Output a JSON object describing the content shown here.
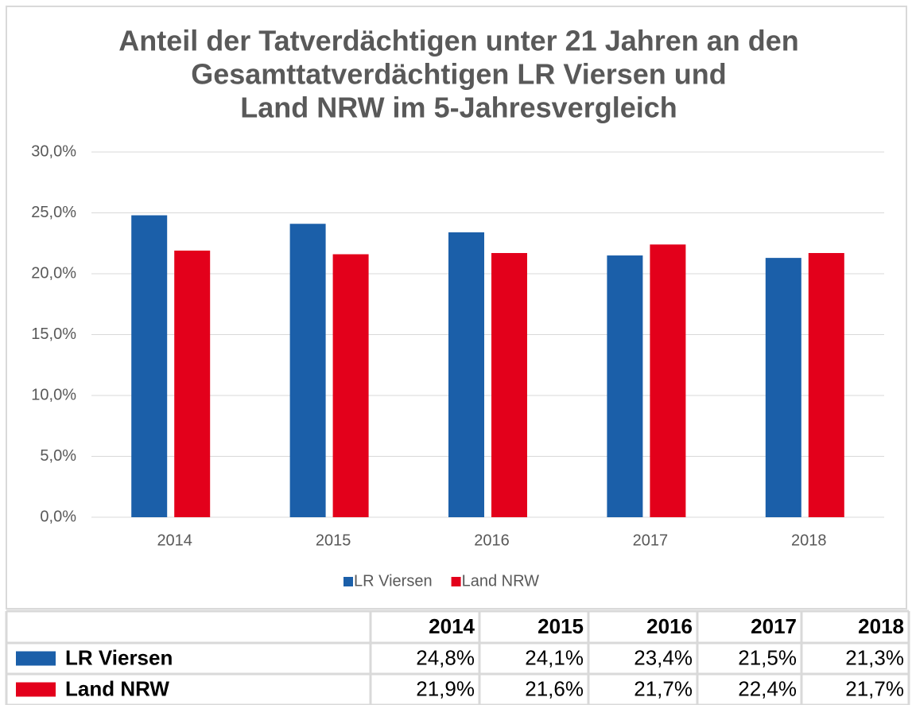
{
  "chart_data": {
    "type": "bar",
    "title": [
      "Anteil der Tatverdächtigen unter 21 Jahren an den",
      "Gesamttatverdächtigen LR Viersen und",
      "Land NRW im 5-Jahresvergleich"
    ],
    "categories": [
      "2014",
      "2015",
      "2016",
      "2017",
      "2018"
    ],
    "series": [
      {
        "name": "LR Viersen",
        "color": "#1b5fa9",
        "values": [
          24.8,
          24.1,
          23.4,
          21.5,
          21.3
        ],
        "value_labels": [
          "24,8%",
          "24,1%",
          "23,4%",
          "21,5%",
          "21,3%"
        ]
      },
      {
        "name": "Land NRW",
        "color": "#e3001b",
        "values": [
          21.9,
          21.6,
          21.7,
          22.4,
          21.7
        ],
        "value_labels": [
          "21,9%",
          "21,6%",
          "21,7%",
          "22,4%",
          "21,7%"
        ]
      }
    ],
    "ylim": [
      0,
      30
    ],
    "yticks": [
      {
        "value": 0,
        "label": "0,0%"
      },
      {
        "value": 5,
        "label": "5,0%"
      },
      {
        "value": 10,
        "label": "10,0%"
      },
      {
        "value": 15,
        "label": "15,0%"
      },
      {
        "value": 20,
        "label": "20,0%"
      },
      {
        "value": 25,
        "label": "25,0%"
      },
      {
        "value": 30,
        "label": "30,0%"
      }
    ],
    "grid": true,
    "legend": "bottom"
  }
}
